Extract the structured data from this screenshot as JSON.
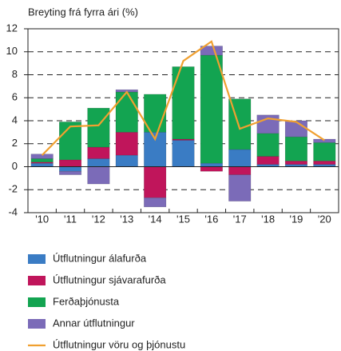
{
  "chart_data": {
    "type": "bar",
    "title": "Breyting frá fyrra ári (%)",
    "categories": [
      "'10",
      "'11",
      "'12",
      "'13",
      "'14",
      "'15",
      "'16",
      "'17",
      "'18",
      "'19",
      "'20"
    ],
    "series": [
      {
        "name": "Útflutningur álafurða",
        "color": "#3a7cc4",
        "values": [
          0.3,
          -0.4,
          0.7,
          1.0,
          3.0,
          2.3,
          0.3,
          1.5,
          0.2,
          0.2,
          0.2
        ]
      },
      {
        "name": "Útflutningur sjávarafurða",
        "color": "#c0155b",
        "values": [
          0.1,
          0.6,
          1.0,
          2.0,
          -2.7,
          0.1,
          -0.4,
          -0.7,
          0.7,
          0.3,
          0.3
        ]
      },
      {
        "name": "Ferðaþjónusta",
        "color": "#13a451",
        "values": [
          0.3,
          3.3,
          3.4,
          3.5,
          3.3,
          6.3,
          9.4,
          4.4,
          2.0,
          2.1,
          1.6
        ]
      },
      {
        "name": "Annar útflutningur",
        "color": "#7b6bb8",
        "values": [
          0.4,
          -0.3,
          -1.5,
          0.2,
          -0.8,
          0,
          0.8,
          -2.3,
          1.6,
          1.4,
          0.3
        ]
      },
      {
        "name": "Útflutningur vöru og þjónustu",
        "color": "#f0a030",
        "type": "line",
        "values": [
          1.0,
          3.5,
          3.6,
          6.5,
          2.4,
          9.2,
          10.9,
          3.3,
          4.2,
          3.9,
          2.3
        ]
      }
    ],
    "ylim": [
      -4,
      12
    ],
    "yticks": [
      -4,
      -2,
      0,
      2,
      4,
      6,
      8,
      10,
      12
    ],
    "grid": true
  }
}
